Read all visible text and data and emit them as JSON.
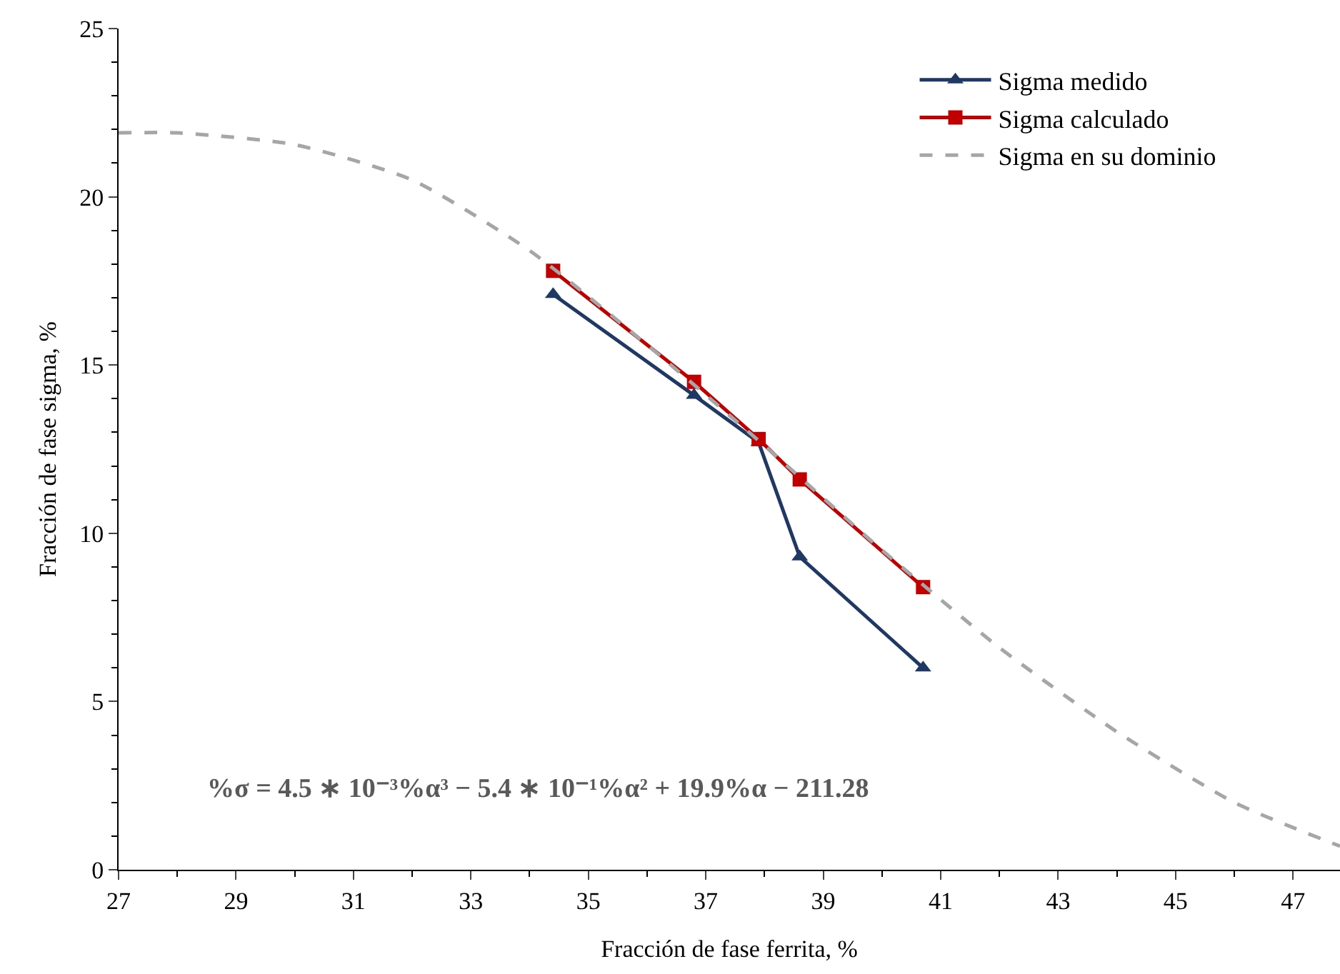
{
  "chart_data": {
    "type": "line",
    "xlabel": "Fracción de fase ferrita, %",
    "ylabel": "Fracción de fase sigma, %",
    "xlim": [
      27,
      47.8
    ],
    "xticks": [
      27,
      29,
      31,
      33,
      35,
      37,
      39,
      41,
      43,
      45,
      47
    ],
    "ylim": [
      0,
      25
    ],
    "yticks": [
      0,
      5,
      10,
      15,
      20,
      25
    ],
    "legend": "top right",
    "series": [
      {
        "name": "Sigma medido",
        "color": "#203864",
        "marker": "triangle",
        "line_style": "solid",
        "x": [
          34.4,
          36.8,
          37.9,
          38.6,
          40.7
        ],
        "values": [
          17.1,
          14.1,
          12.7,
          9.3,
          6.0
        ]
      },
      {
        "name": "Sigma calculado",
        "color": "#c00000",
        "marker": "square",
        "line_style": "solid",
        "x": [
          34.4,
          36.8,
          37.9,
          38.6,
          40.7
        ],
        "values": [
          17.8,
          14.5,
          12.8,
          11.6,
          8.4
        ]
      },
      {
        "name": "Sigma en su dominio",
        "color": "#a6a6a6",
        "marker": "none",
        "line_style": "dashed",
        "x": [
          27,
          28,
          30,
          32,
          34,
          36,
          38,
          40,
          42,
          44,
          46,
          47.8
        ],
        "values": [
          21.9,
          21.9,
          21.55,
          20.5,
          18.4,
          15.6,
          12.6,
          9.5,
          6.6,
          4.1,
          2.0,
          0.7
        ]
      }
    ],
    "annotations": [
      "%σ = 4.5 ∗ 10⁻³%α³ − 5.4 ∗ 10⁻¹%α² + 19.9%α − 211.28"
    ]
  }
}
